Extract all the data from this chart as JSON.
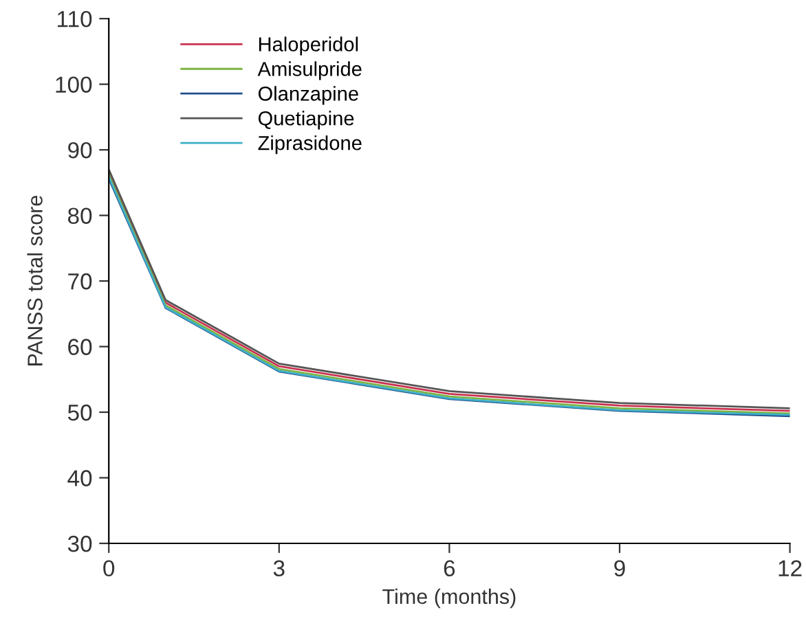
{
  "chart_data": {
    "type": "line",
    "xlabel": "Time (months)",
    "ylabel": "PANSS total score",
    "x": [
      0,
      1,
      3,
      6,
      9,
      12
    ],
    "series": [
      {
        "name": "Haloperidol",
        "color": "#c8324f",
        "values": [
          86.6,
          66.7,
          57.0,
          52.8,
          51.0,
          50.2
        ]
      },
      {
        "name": "Amisulpride",
        "color": "#7cb342",
        "values": [
          86.2,
          66.3,
          56.6,
          52.4,
          50.6,
          49.8
        ]
      },
      {
        "name": "Olanzapine",
        "color": "#1f4e8c",
        "values": [
          85.6,
          65.9,
          56.2,
          52.0,
          50.2,
          49.4
        ]
      },
      {
        "name": "Quetiapine",
        "color": "#555555",
        "values": [
          87.0,
          67.1,
          57.4,
          53.2,
          51.4,
          50.6
        ]
      },
      {
        "name": "Ziprasidone",
        "color": "#3fb0c8",
        "values": [
          85.9,
          66.0,
          56.3,
          52.1,
          50.3,
          49.6
        ]
      }
    ],
    "xlim": [
      0,
      12
    ],
    "xticks": [
      0,
      3,
      6,
      9,
      12
    ],
    "ylim": [
      30,
      110
    ],
    "yticks": [
      30,
      40,
      50,
      60,
      70,
      80,
      90,
      100,
      110
    ],
    "grid": false,
    "legend": "top left"
  }
}
